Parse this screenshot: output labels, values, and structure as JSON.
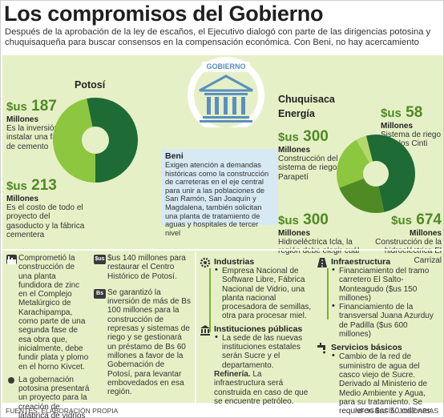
{
  "title": "Los compromisos del Gobierno",
  "intro": "Después de la aprobación de la ley de escaños, el Ejecutivo dialogó con parte de las dirigencias potosina y chuquisaqueña para buscar consensos en la compensación económica. Con Beni, no hay acercamiento",
  "emblem_label": "GOBIERNO",
  "colors": {
    "light_green": "#8dc63f",
    "dark_green": "#1e6b35",
    "mid_green": "#4f8a25",
    "bg_green": "#e6f0c6",
    "blue": "#d7e9f3",
    "emblem_blue": "#5a8fc0"
  },
  "potosi": {
    "name": "Potosí",
    "a": {
      "currency": "$us",
      "value": "187",
      "unit": "Millones",
      "desc": "Es la inversión para instalar una fábrica de cemento"
    },
    "b": {
      "currency": "$us",
      "value": "213",
      "unit": "Millones",
      "desc": "Es el costo de todo el proyecto del gasoducto y la fábrica cementera"
    },
    "pie": [
      {
        "label": "fábrica de cemento",
        "value": 187,
        "color": "#8dc63f"
      },
      {
        "label": "gasoducto",
        "value": 213,
        "color": "#1e6b35"
      }
    ]
  },
  "chuquisaca": {
    "name": "Chuquisaca",
    "sub": "Energía",
    "a": {
      "currency": "$us",
      "value": "300",
      "unit": "Millones",
      "desc": "Construcción del sistema de riego Parapetí"
    },
    "b": {
      "currency": "$us",
      "value": "58",
      "unit": "Millones",
      "desc": "Sistema de riego para los Cinti"
    },
    "c": {
      "currency": "$us",
      "value": "300",
      "unit": "Millones",
      "desc": "Hidroeléctrica Icla, la región debe elegir cuál"
    },
    "d": {
      "currency": "$us",
      "value": "674",
      "unit": "Millones",
      "desc": "Construcción de la hidroeléctrica El Carrizal"
    },
    "pie": [
      {
        "label": "riego Cinti",
        "value": 58,
        "color": "#b5d86a"
      },
      {
        "label": "El Carrizal",
        "value": 674,
        "color": "#1e6b35"
      },
      {
        "label": "Icla",
        "value": 300,
        "color": "#4f8a25"
      },
      {
        "label": "riego Parapetí",
        "value": 300,
        "color": "#8dc63f"
      }
    ]
  },
  "beni": {
    "title": "Beni",
    "text": "Exigen atención a demandas históricas como la construcción de carreteras en el eje central para unir a las poblaciones de San Ramón, San Joaquín y Magdalena, también solicitan una planta de tratamiento de aguas y hospitales de tercer nivel"
  },
  "potosi_details": {
    "item1": "Comprometió la construcción de una planta fundidora de zinc en el Complejo Metalúrgico de Karachipampa, como parte de una segunda fase de esa obra que, inicialmente, debe fundir plata y plomo en el horno Kivcet.",
    "item2": "La gobernación potosina presentará un proyecto para la creación de lafábrica de vidrios en Potosí",
    "item3_icon": "$us",
    "item3": "$us 140 millones para restaurar el Centro Histórico de Potosí.",
    "item4_icon": "Bs",
    "item4": "Se garantizó la inversión de más de Bs 100 millones para la construcción de represas y sistemas de riego y se gestionará un préstamo de Bs 60 millones a favor de la Gobernación de Potosí, para levantar embovedados en esa región."
  },
  "chuq_details": {
    "industrias": {
      "title": "Industrias",
      "items": [
        "Empresa Nacional de Software Libre, Fábrica Nacional de Vidrio, una planta nacional procesadora de semillas, otra para procesar miel."
      ]
    },
    "instituciones": {
      "title": "Instituciones públicas",
      "items": [
        "La sede de las nuevas instituciones estatales serán Sucre y el departamento."
      ],
      "refineria_title": "Refinería.",
      "refineria_text": "La infraestructura será construida en caso de que se encuentre petróleo."
    },
    "infraestructura": {
      "title": "Infraestructura",
      "items": [
        "Financiamiento del tramo carretero El Salto-Monteagudo ($us 150 millones)",
        "Financiamiento de la transversal Juana Azurduy de Padilla ($us 600 millones)"
      ]
    },
    "servicios": {
      "title": "Servicios básicos",
      "items": [
        "Cambio de la red de suministro de agua del casco viejo de Sucre. Derivado al Ministerio de Medio Ambiente y Agua, para su tratamiento. Se requieren $us 50 millones."
      ]
    }
  },
  "footer": {
    "left": "FUENTES: ELABORACIÓN PROPIA",
    "right": "INFOGRAFÍA: JOSÉ ARIAS"
  }
}
